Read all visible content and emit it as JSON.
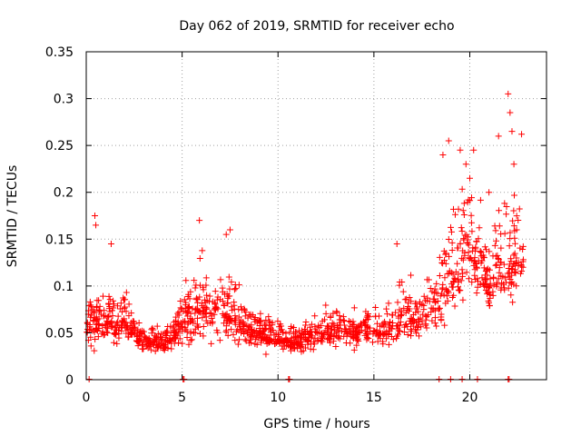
{
  "chart_data": {
    "type": "scatter",
    "title": "Day 062 of 2019, SRMTID for receiver echo",
    "xlabel": "GPS time / hours",
    "ylabel": "SRMTID / TECUs",
    "xlim": [
      0,
      24
    ],
    "ylim": [
      0,
      0.35
    ],
    "x_ticks": [
      0,
      5,
      10,
      15,
      20
    ],
    "x_tick_labels": [
      "0",
      "5",
      "10",
      "15",
      "20"
    ],
    "y_ticks": [
      0,
      0.05,
      0.1,
      0.15,
      0.2,
      0.25,
      0.3,
      0.35
    ],
    "y_tick_labels": [
      "0",
      "0.05",
      "0.1",
      "0.15",
      "0.2",
      "0.25",
      "0.3",
      "0.35"
    ],
    "grid": true,
    "marker": "plus",
    "color": "#ff0000",
    "series_name": "SRMTID",
    "envelope_x": [
      0,
      0.5,
      1.0,
      1.5,
      2.0,
      2.5,
      3.0,
      3.5,
      4.0,
      4.5,
      5.0,
      5.5,
      6.0,
      6.5,
      7.0,
      7.5,
      8.0,
      8.5,
      9.0,
      9.5,
      10.0,
      10.5,
      11.0,
      11.5,
      12.0,
      12.5,
      13.0,
      13.5,
      14.0,
      14.5,
      15.0,
      15.5,
      16.0,
      16.5,
      17.0,
      17.5,
      18.0,
      18.5,
      19.0,
      19.5,
      20.0,
      20.5,
      21.0,
      21.5,
      22.0,
      22.5,
      22.8
    ],
    "envelope_mean": [
      0.05,
      0.065,
      0.06,
      0.055,
      0.065,
      0.05,
      0.04,
      0.04,
      0.04,
      0.045,
      0.06,
      0.07,
      0.075,
      0.065,
      0.07,
      0.07,
      0.06,
      0.05,
      0.05,
      0.045,
      0.045,
      0.04,
      0.04,
      0.045,
      0.045,
      0.05,
      0.05,
      0.055,
      0.05,
      0.05,
      0.055,
      0.05,
      0.06,
      0.06,
      0.065,
      0.065,
      0.075,
      0.08,
      0.11,
      0.12,
      0.14,
      0.12,
      0.1,
      0.12,
      0.12,
      0.125,
      0.13
    ],
    "envelope_spread": [
      0.02,
      0.04,
      0.025,
      0.035,
      0.025,
      0.02,
      0.015,
      0.015,
      0.015,
      0.02,
      0.035,
      0.045,
      0.045,
      0.04,
      0.045,
      0.04,
      0.03,
      0.025,
      0.02,
      0.02,
      0.02,
      0.015,
      0.015,
      0.02,
      0.02,
      0.02,
      0.02,
      0.025,
      0.02,
      0.02,
      0.025,
      0.025,
      0.03,
      0.035,
      0.03,
      0.03,
      0.035,
      0.05,
      0.06,
      0.065,
      0.06,
      0.05,
      0.045,
      0.055,
      0.07,
      0.06,
      0.05
    ],
    "sample_count": 1400,
    "random_seed": 62,
    "outliers": [
      {
        "x": 0.45,
        "y": 0.175
      },
      {
        "x": 0.5,
        "y": 0.165
      },
      {
        "x": 1.3,
        "y": 0.145
      },
      {
        "x": 5.9,
        "y": 0.17
      },
      {
        "x": 7.5,
        "y": 0.16
      },
      {
        "x": 7.3,
        "y": 0.155
      },
      {
        "x": 16.2,
        "y": 0.145
      },
      {
        "x": 18.6,
        "y": 0.24
      },
      {
        "x": 18.9,
        "y": 0.255
      },
      {
        "x": 19.5,
        "y": 0.245
      },
      {
        "x": 19.8,
        "y": 0.23
      },
      {
        "x": 20.0,
        "y": 0.215
      },
      {
        "x": 21.5,
        "y": 0.26
      },
      {
        "x": 22.0,
        "y": 0.305
      },
      {
        "x": 22.1,
        "y": 0.285
      },
      {
        "x": 22.2,
        "y": 0.265
      },
      {
        "x": 22.7,
        "y": 0.262
      },
      {
        "x": 22.3,
        "y": 0.23
      },
      {
        "x": 20.2,
        "y": 0.245
      },
      {
        "x": 21.0,
        "y": 0.2
      }
    ],
    "zero_points_x": [
      0.15,
      5.05,
      5.1,
      10.55,
      10.6,
      18.4,
      19.0,
      19.6,
      20.4,
      22.0,
      22.05
    ]
  }
}
